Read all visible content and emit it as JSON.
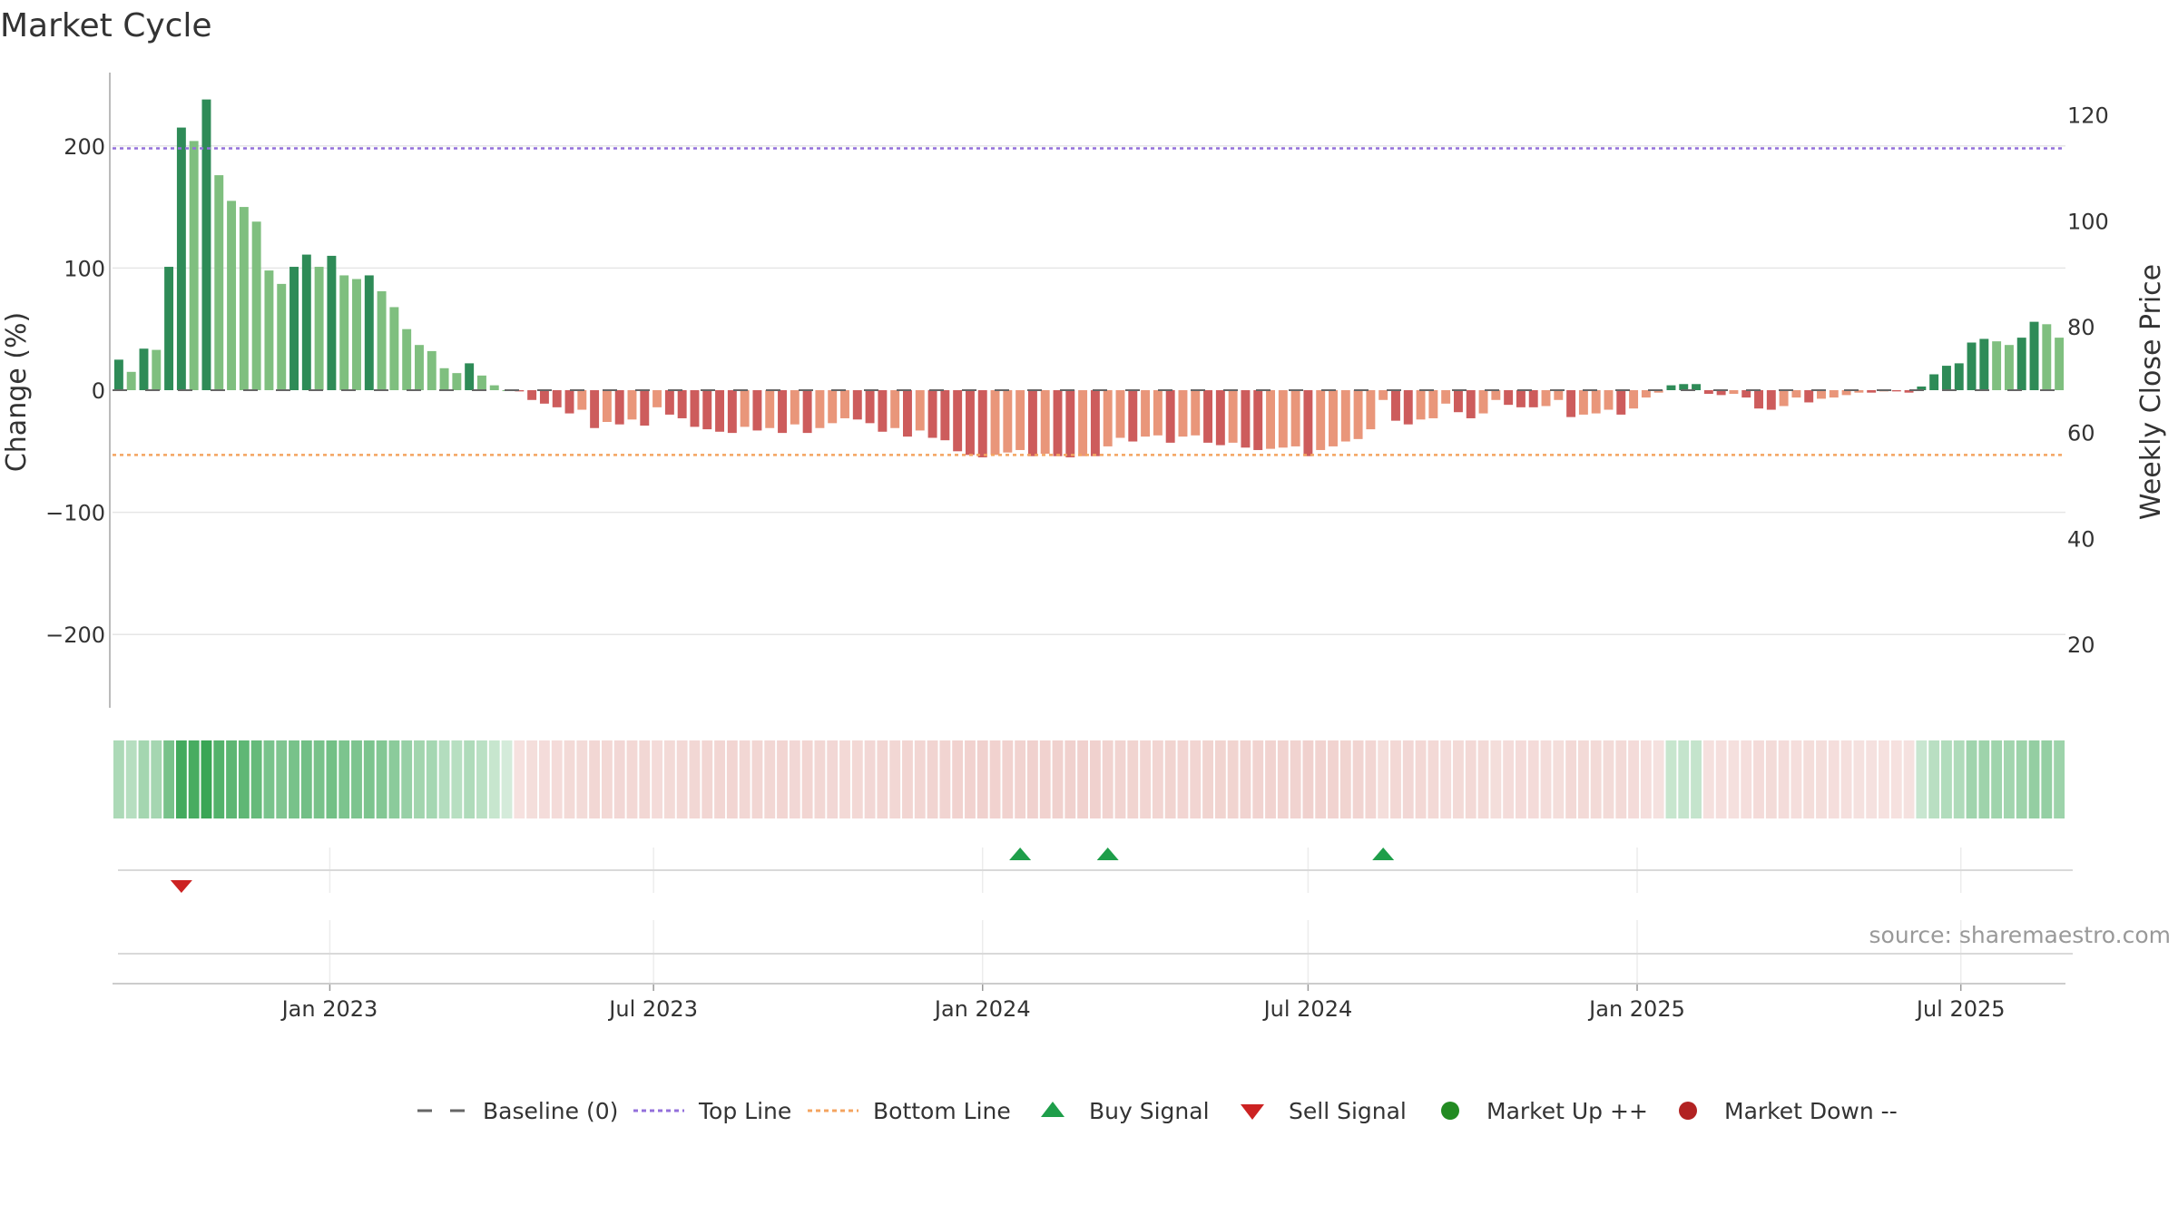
{
  "chart_data": {
    "type": "bar",
    "title": "Market Cycle",
    "ylabel": "Change (%)",
    "y2label": "Weekly Close Price",
    "ylim": [
      -260,
      260
    ],
    "y2lim": [
      8,
      128
    ],
    "y_ticks": [
      -200,
      -100,
      0,
      100,
      200
    ],
    "y_tick_labels": [
      "−200",
      "−100",
      "0",
      "100",
      "200"
    ],
    "y2_ticks": [
      20,
      40,
      60,
      80,
      100,
      120
    ],
    "x_ticks": [
      "2023-01-01",
      "2023-07-01",
      "2024-01-01",
      "2024-07-01",
      "2025-01-01",
      "2025-07-01"
    ],
    "x_tick_labels": [
      "Jan 2023",
      "Jul 2023",
      "Jan 2024",
      "Jul 2024",
      "Jan 2025",
      "Jul 2025"
    ],
    "start_date": "2022-09-05",
    "top_line": 198,
    "bottom_line": -53,
    "baseline": 0,
    "values": [
      25,
      15,
      34,
      33,
      101,
      215,
      204,
      238,
      176,
      155,
      150,
      138,
      98,
      87,
      101,
      111,
      101,
      110,
      94,
      91,
      94,
      81,
      68,
      50,
      37,
      32,
      18,
      14,
      22,
      12,
      4,
      0,
      -1,
      -8,
      -11,
      -14,
      -19,
      -16,
      -31,
      -26,
      -28,
      -24,
      -29,
      -14,
      -20,
      -23,
      -30,
      -32,
      -34,
      -35,
      -30,
      -33,
      -31,
      -35,
      -28,
      -35,
      -31,
      -27,
      -23,
      -24,
      -27,
      -34,
      -31,
      -38,
      -33,
      -39,
      -41,
      -50,
      -53,
      -55,
      -53,
      -51,
      -49,
      -54,
      -52,
      -54,
      -55,
      -54,
      -54,
      -46,
      -39,
      -42,
      -38,
      -37,
      -43,
      -38,
      -37,
      -43,
      -45,
      -43,
      -47,
      -49,
      -48,
      -47,
      -46,
      -54,
      -49,
      -46,
      -42,
      -40,
      -32,
      -8,
      -25,
      -28,
      -24,
      -23,
      -11,
      -18,
      -23,
      -19,
      -8,
      -12,
      -14,
      -14,
      -13,
      -8,
      -22,
      -20,
      -19,
      -16,
      -20,
      -15,
      -6,
      -2,
      4,
      5,
      5,
      -3,
      -4,
      -3,
      -6,
      -15,
      -16,
      -13,
      -6,
      -10,
      -7,
      -6,
      -4,
      -2,
      -2,
      -1,
      -1,
      -2,
      3,
      13,
      20,
      22,
      39,
      42,
      40,
      37,
      43,
      56,
      54,
      43
    ],
    "signals": [
      {
        "type": "sell",
        "date": "2022-10-10"
      },
      {
        "type": "buy",
        "date": "2024-01-22"
      },
      {
        "type": "buy",
        "date": "2024-03-11"
      },
      {
        "type": "buy",
        "date": "2024-08-12"
      }
    ],
    "legend": [
      "Baseline (0)",
      "Top Line",
      "Bottom Line",
      "Buy Signal",
      "Sell Signal",
      "Market Up ++",
      "Market Down --"
    ],
    "legend_position": "bottom-center",
    "grid": true,
    "colors": {
      "up_strong": "#2e8b57",
      "up_light": "#7fbf7f",
      "down_strong": "#cd5c5c",
      "down_light": "#e9967a",
      "top_line": "#9370db",
      "bottom_line": "#f4a460",
      "baseline": "#666666",
      "buy": "#1e9e4a",
      "sell": "#cc2222",
      "market_up": "#228b22",
      "market_down": "#b22222"
    }
  },
  "source": "source: sharemaestro.com"
}
